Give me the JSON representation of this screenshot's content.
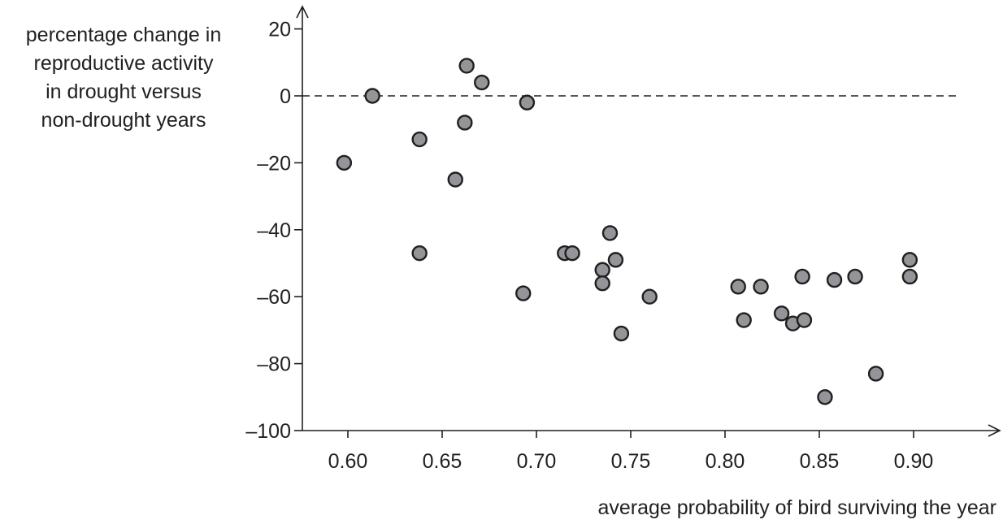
{
  "chart_data": {
    "type": "scatter",
    "title": "",
    "xlabel": "average probability of bird surviving the year",
    "ylabel_lines": [
      "percentage change in",
      "reproductive activity",
      "in drought versus",
      "non-drought years"
    ],
    "xlim": [
      0.58,
      0.92
    ],
    "ylim": [
      -100,
      22
    ],
    "x_ticks": [
      0.6,
      0.65,
      0.7,
      0.75,
      0.8,
      0.85,
      0.9
    ],
    "x_tick_labels": [
      "0.60",
      "0.65",
      "0.70",
      "0.75",
      "0.80",
      "0.85",
      "0.90"
    ],
    "y_ticks": [
      20,
      0,
      -20,
      -40,
      -60,
      -80,
      -100
    ],
    "y_tick_labels": [
      "20",
      "0",
      "–20",
      "–40",
      "–60",
      "–80",
      "–100"
    ],
    "reference_line": {
      "y": 0,
      "style": "dashed"
    },
    "grid": false,
    "legend": "none",
    "colors": {
      "point_fill": "#939598",
      "point_stroke": "#231f20",
      "axis": "#231f20",
      "text": "#231f20"
    },
    "points": [
      {
        "x": 0.598,
        "y": -20
      },
      {
        "x": 0.613,
        "y": 0
      },
      {
        "x": 0.638,
        "y": -13
      },
      {
        "x": 0.638,
        "y": -47
      },
      {
        "x": 0.657,
        "y": -25
      },
      {
        "x": 0.662,
        "y": -8
      },
      {
        "x": 0.663,
        "y": 9
      },
      {
        "x": 0.671,
        "y": 4
      },
      {
        "x": 0.693,
        "y": -59
      },
      {
        "x": 0.695,
        "y": -2
      },
      {
        "x": 0.715,
        "y": -47
      },
      {
        "x": 0.719,
        "y": -47
      },
      {
        "x": 0.735,
        "y": -52
      },
      {
        "x": 0.735,
        "y": -56
      },
      {
        "x": 0.739,
        "y": -41
      },
      {
        "x": 0.742,
        "y": -49
      },
      {
        "x": 0.745,
        "y": -71
      },
      {
        "x": 0.76,
        "y": -60
      },
      {
        "x": 0.807,
        "y": -57
      },
      {
        "x": 0.81,
        "y": -67
      },
      {
        "x": 0.819,
        "y": -57
      },
      {
        "x": 0.83,
        "y": -65
      },
      {
        "x": 0.836,
        "y": -68
      },
      {
        "x": 0.841,
        "y": -54
      },
      {
        "x": 0.842,
        "y": -67
      },
      {
        "x": 0.853,
        "y": -90
      },
      {
        "x": 0.858,
        "y": -55
      },
      {
        "x": 0.869,
        "y": -54
      },
      {
        "x": 0.88,
        "y": -83
      },
      {
        "x": 0.898,
        "y": -49
      },
      {
        "x": 0.898,
        "y": -54
      }
    ]
  }
}
